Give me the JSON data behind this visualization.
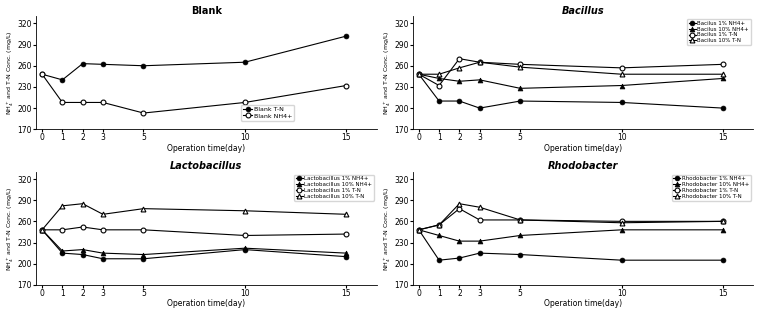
{
  "x": [
    0,
    1,
    2,
    3,
    5,
    10,
    15
  ],
  "blank": {
    "title": "Blank",
    "TN": [
      248,
      240,
      263,
      262,
      260,
      265,
      302
    ],
    "NH4": [
      248,
      208,
      208,
      208,
      193,
      208,
      232
    ]
  },
  "bacillus": {
    "title": "Bacillus",
    "NH4_1": [
      248,
      210,
      210,
      200,
      210,
      208,
      200
    ],
    "NH4_10": [
      248,
      242,
      238,
      240,
      228,
      232,
      242
    ],
    "TN_1": [
      248,
      232,
      270,
      265,
      262,
      257,
      262
    ],
    "TN_10": [
      248,
      248,
      257,
      265,
      258,
      248,
      248
    ]
  },
  "lactobacillus": {
    "title": "Lactobacillus",
    "NH4_1": [
      248,
      215,
      213,
      207,
      207,
      220,
      210
    ],
    "NH4_10": [
      248,
      218,
      220,
      215,
      213,
      222,
      215
    ],
    "TN_1": [
      248,
      248,
      252,
      248,
      248,
      240,
      242
    ],
    "TN_10": [
      248,
      282,
      285,
      270,
      278,
      275,
      270
    ]
  },
  "rhodobacter": {
    "title": "Rhodobacter",
    "NH4_1": [
      248,
      205,
      208,
      215,
      213,
      205,
      205
    ],
    "NH4_10": [
      248,
      240,
      232,
      232,
      240,
      248,
      248
    ],
    "TN_1": [
      248,
      255,
      278,
      262,
      262,
      260,
      260
    ],
    "TN_10": [
      248,
      255,
      285,
      280,
      262,
      258,
      260
    ]
  },
  "ylim": [
    170,
    330
  ],
  "yticks": [
    170,
    200,
    230,
    260,
    290,
    320
  ],
  "ylabel": "NH$_4^+$ and T-N Conc. (mg/L)",
  "xlabel": "Operation time(day)",
  "legend_blank": [
    "Blank T-N",
    "Blank NH4+"
  ],
  "legend_bacillus": [
    "Bacilus 1% NH4+",
    "Bacilus 10% NH4+",
    "Bacilus 1% T-N",
    "Bacilus 10% T-N"
  ],
  "legend_lacto": [
    "Lactobacillus 1% NH4+",
    "Lactobacillus 10% NH4+",
    "Lactobacillus 1% T-N",
    "Lactobacillus 10% T-N"
  ],
  "legend_rhodo": [
    "Rhodobacter 1% NH4+",
    "Rhodobacter 10% NH4+",
    "Rhodobacter 1% T-N",
    "Rhodobacter 10% T-N"
  ]
}
